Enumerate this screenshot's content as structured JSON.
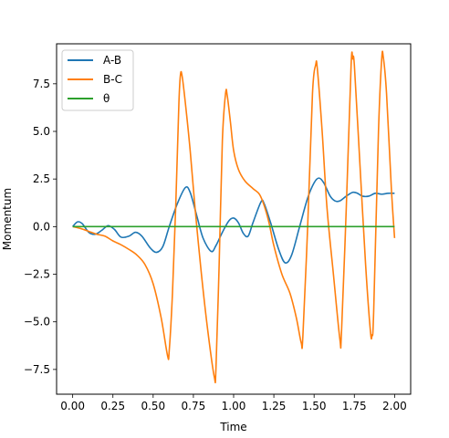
{
  "chart_data": {
    "type": "line",
    "xlabel": "Time",
    "ylabel": "Momentum",
    "xlim": [
      -0.1,
      2.1
    ],
    "ylim": [
      -8.8,
      9.6
    ],
    "xticks": [
      0.0,
      0.25,
      0.5,
      0.75,
      1.0,
      1.25,
      1.5,
      1.75,
      2.0
    ],
    "xtick_labels": [
      "0.00",
      "0.25",
      "0.50",
      "0.75",
      "1.00",
      "1.25",
      "1.50",
      "1.75",
      "2.00"
    ],
    "yticks": [
      -7.5,
      -5.0,
      -2.5,
      0.0,
      2.5,
      5.0,
      7.5
    ],
    "ytick_labels": [
      "−7.5",
      "−5.0",
      "−2.5",
      "0.0",
      "2.5",
      "5.0",
      "7.5"
    ],
    "grid": false,
    "legend_position": "top-left",
    "series": [
      {
        "name": "A-B",
        "color": "#1f77b4",
        "points": [
          [
            0.0,
            0.0
          ],
          [
            0.03,
            0.25
          ],
          [
            0.06,
            0.15
          ],
          [
            0.1,
            -0.3
          ],
          [
            0.14,
            -0.4
          ],
          [
            0.18,
            -0.2
          ],
          [
            0.22,
            0.05
          ],
          [
            0.26,
            -0.15
          ],
          [
            0.3,
            -0.55
          ],
          [
            0.35,
            -0.5
          ],
          [
            0.39,
            -0.3
          ],
          [
            0.43,
            -0.5
          ],
          [
            0.48,
            -1.1
          ],
          [
            0.52,
            -1.35
          ],
          [
            0.56,
            -1.05
          ],
          [
            0.6,
            0.0
          ],
          [
            0.65,
            1.2
          ],
          [
            0.7,
            2.05
          ],
          [
            0.73,
            1.8
          ],
          [
            0.77,
            0.6
          ],
          [
            0.81,
            -0.6
          ],
          [
            0.86,
            -1.3
          ],
          [
            0.89,
            -1.0
          ],
          [
            0.93,
            -0.3
          ],
          [
            0.97,
            0.3
          ],
          [
            1.0,
            0.45
          ],
          [
            1.03,
            0.2
          ],
          [
            1.06,
            -0.35
          ],
          [
            1.09,
            -0.5
          ],
          [
            1.12,
            0.2
          ],
          [
            1.17,
            1.3
          ],
          [
            1.19,
            1.2
          ],
          [
            1.23,
            0.2
          ],
          [
            1.28,
            -1.2
          ],
          [
            1.32,
            -1.9
          ],
          [
            1.36,
            -1.5
          ],
          [
            1.41,
            0.0
          ],
          [
            1.46,
            1.5
          ],
          [
            1.5,
            2.3
          ],
          [
            1.53,
            2.55
          ],
          [
            1.56,
            2.3
          ],
          [
            1.6,
            1.6
          ],
          [
            1.63,
            1.35
          ],
          [
            1.66,
            1.35
          ],
          [
            1.7,
            1.6
          ],
          [
            1.74,
            1.8
          ],
          [
            1.77,
            1.75
          ],
          [
            1.8,
            1.6
          ],
          [
            1.84,
            1.6
          ],
          [
            1.88,
            1.75
          ],
          [
            1.92,
            1.7
          ],
          [
            1.96,
            1.75
          ],
          [
            2.0,
            1.75
          ]
        ]
      },
      {
        "name": "B-C",
        "color": "#ff7f0e",
        "points": [
          [
            0.0,
            0.0
          ],
          [
            0.05,
            -0.1
          ],
          [
            0.1,
            -0.25
          ],
          [
            0.15,
            -0.4
          ],
          [
            0.2,
            -0.5
          ],
          [
            0.25,
            -0.75
          ],
          [
            0.3,
            -0.95
          ],
          [
            0.35,
            -1.2
          ],
          [
            0.4,
            -1.5
          ],
          [
            0.45,
            -2.0
          ],
          [
            0.5,
            -3.0
          ],
          [
            0.55,
            -4.8
          ],
          [
            0.59,
            -6.8
          ],
          [
            0.6,
            -6.5
          ],
          [
            0.62,
            -3.5
          ],
          [
            0.64,
            1.0
          ],
          [
            0.66,
            6.5
          ],
          [
            0.67,
            8.0
          ],
          [
            0.68,
            7.9
          ],
          [
            0.7,
            6.5
          ],
          [
            0.73,
            4.0
          ],
          [
            0.76,
            1.0
          ],
          [
            0.8,
            -2.5
          ],
          [
            0.84,
            -5.5
          ],
          [
            0.88,
            -7.9
          ],
          [
            0.89,
            -7.5
          ],
          [
            0.91,
            -2.0
          ],
          [
            0.93,
            4.5
          ],
          [
            0.95,
            7.0
          ],
          [
            0.96,
            6.9
          ],
          [
            0.98,
            5.5
          ],
          [
            1.0,
            4.0
          ],
          [
            1.03,
            3.0
          ],
          [
            1.07,
            2.4
          ],
          [
            1.12,
            2.0
          ],
          [
            1.16,
            1.7
          ],
          [
            1.19,
            1.1
          ],
          [
            1.22,
            0.2
          ],
          [
            1.25,
            -1.0
          ],
          [
            1.3,
            -2.5
          ],
          [
            1.35,
            -3.5
          ],
          [
            1.39,
            -4.8
          ],
          [
            1.42,
            -6.1
          ],
          [
            1.43,
            -5.8
          ],
          [
            1.46,
            0.0
          ],
          [
            1.49,
            7.0
          ],
          [
            1.51,
            8.5
          ],
          [
            1.52,
            8.3
          ],
          [
            1.55,
            5.0
          ],
          [
            1.58,
            1.0
          ],
          [
            1.62,
            -2.5
          ],
          [
            1.66,
            -5.9
          ],
          [
            1.67,
            -5.6
          ],
          [
            1.7,
            1.0
          ],
          [
            1.73,
            8.5
          ],
          [
            1.74,
            8.8
          ],
          [
            1.75,
            8.5
          ],
          [
            1.78,
            4.0
          ],
          [
            1.82,
            -2.0
          ],
          [
            1.85,
            -5.5
          ],
          [
            1.86,
            -5.7
          ],
          [
            1.87,
            -4.5
          ],
          [
            1.9,
            5.0
          ],
          [
            1.92,
            8.8
          ],
          [
            1.93,
            8.9
          ],
          [
            1.95,
            7.0
          ],
          [
            1.98,
            2.0
          ],
          [
            2.0,
            -0.6
          ]
        ]
      },
      {
        "name": "θ",
        "color": "#2ca02c",
        "points": [
          [
            0.0,
            0.0
          ],
          [
            2.0,
            0.0
          ]
        ]
      }
    ]
  }
}
